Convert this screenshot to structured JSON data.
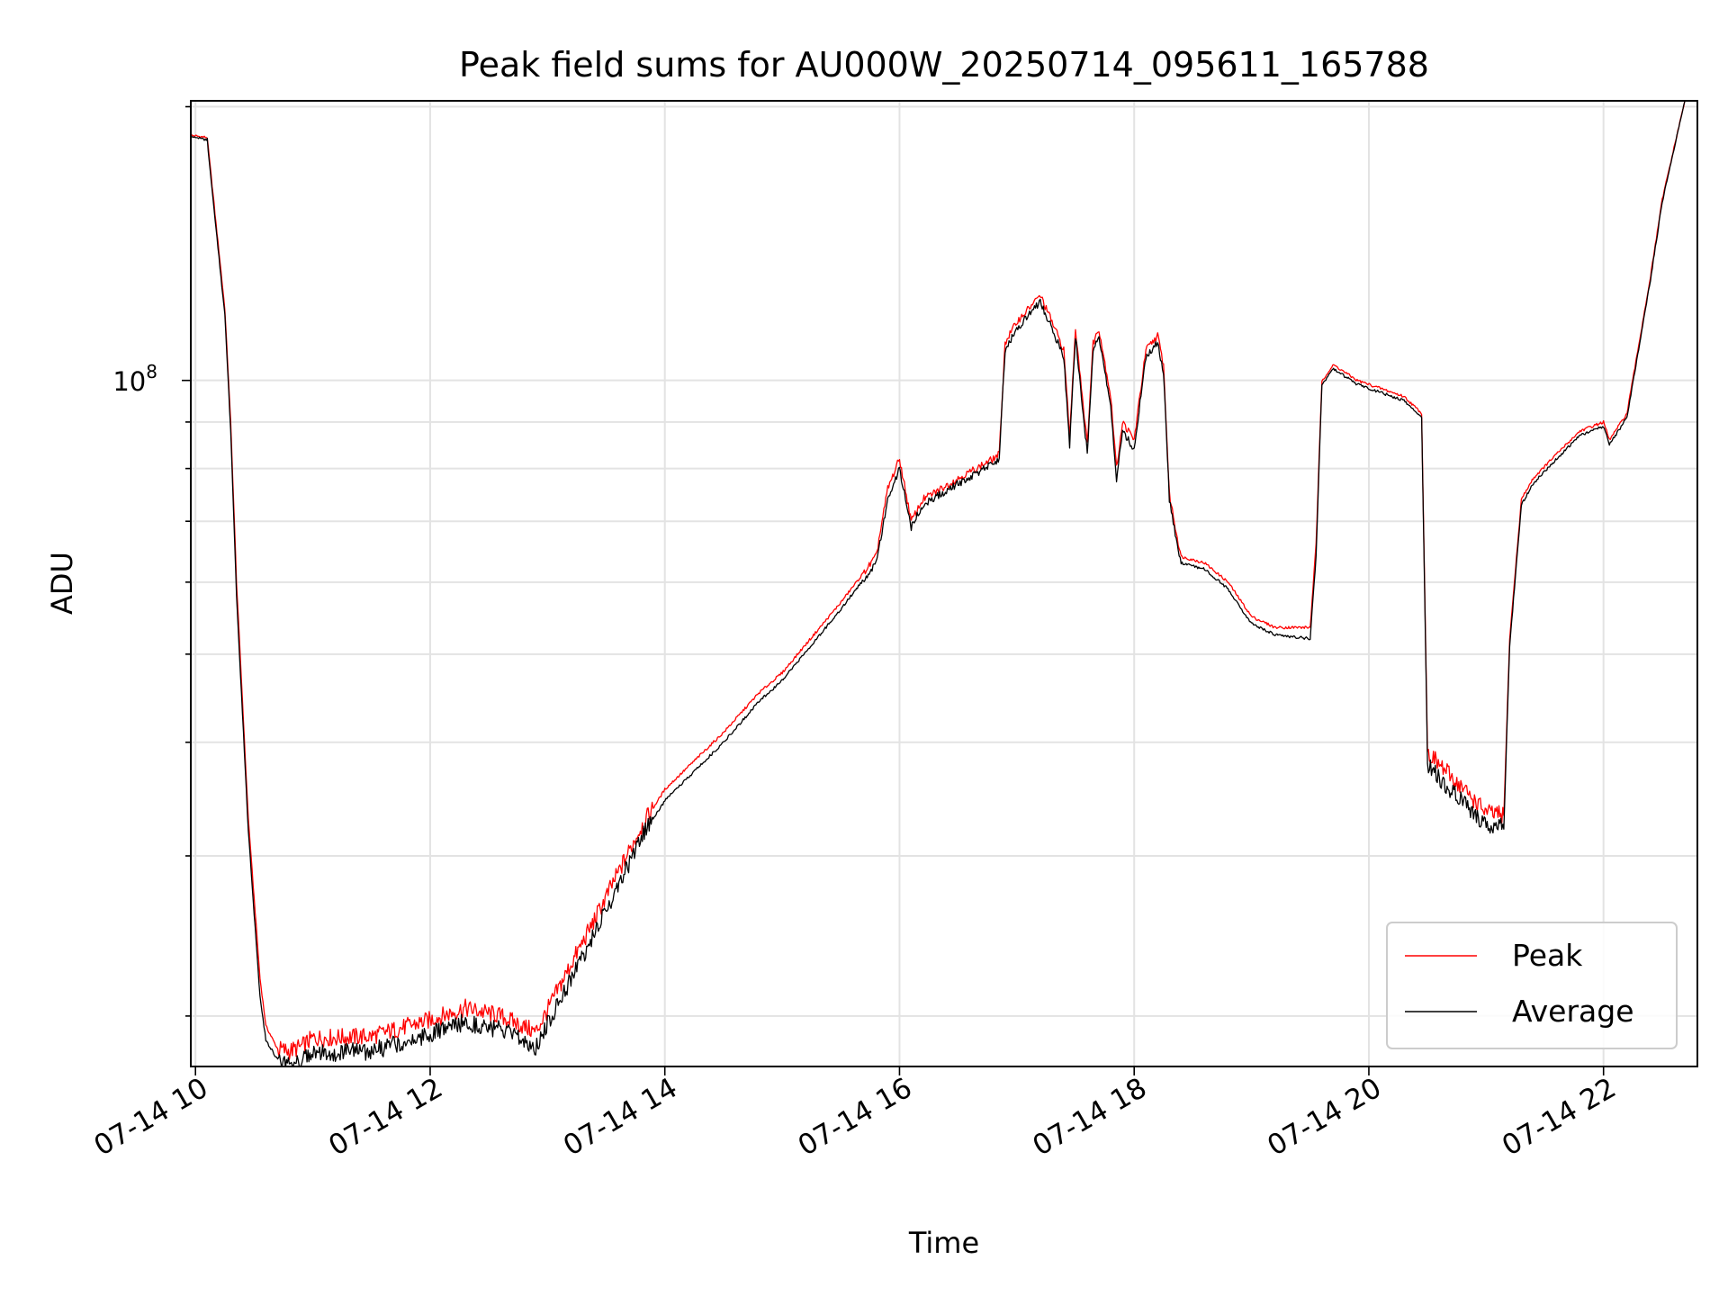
{
  "chart_data": {
    "type": "line",
    "title": "Peak field sums for AU000W_20250714_095611_165788",
    "xlabel": "Time",
    "ylabel": "ADU",
    "x_ticks": [
      "07-14 10",
      "07-14 12",
      "07-14 14",
      "07-14 16",
      "07-14 18",
      "07-14 20",
      "07-14 22"
    ],
    "x_tick_hours": [
      10,
      12,
      14,
      16,
      18,
      20,
      22
    ],
    "xlim_hours": [
      9.96,
      22.8
    ],
    "y_scale": "log",
    "ylim": [
      17600000,
      203000000
    ],
    "y_tick_label": "10^8",
    "y_major_tick": 100000000,
    "grid": true,
    "legend_position": "lower-right",
    "series": [
      {
        "name": "Peak",
        "color": "#ff0000",
        "x_hours": [
          9.96,
          10.1,
          10.15,
          10.25,
          10.3,
          10.35,
          10.45,
          10.55,
          10.6,
          10.7,
          10.8,
          10.9,
          11.0,
          11.5,
          12.0,
          12.3,
          12.6,
          12.9,
          13.0,
          13.2,
          13.4,
          13.6,
          13.8,
          14.0,
          14.5,
          14.8,
          15.0,
          15.5,
          15.8,
          15.9,
          16.0,
          16.1,
          16.2,
          16.5,
          16.8,
          16.85,
          16.9,
          17.0,
          17.2,
          17.3,
          17.4,
          17.45,
          17.5,
          17.6,
          17.65,
          17.7,
          17.8,
          17.85,
          17.9,
          18.0,
          18.1,
          18.2,
          18.25,
          18.3,
          18.35,
          18.4,
          18.6,
          18.8,
          19.0,
          19.2,
          19.5,
          19.55,
          19.6,
          19.7,
          19.9,
          20.1,
          20.3,
          20.45,
          20.5,
          20.6,
          21.0,
          21.15,
          21.2,
          21.3,
          21.4,
          21.6,
          21.8,
          22.0,
          22.05,
          22.2,
          22.4,
          22.5,
          22.7
        ],
        "values": [
          186000000,
          185000000,
          160000000,
          120000000,
          90000000,
          60000000,
          33000000,
          22000000,
          19500000,
          18400000,
          18300000,
          18500000,
          18900000,
          19000000,
          19800000,
          20400000,
          20000000,
          19200000,
          20300000,
          22800000,
          25500000,
          28700000,
          32300000,
          35500000,
          41000000,
          45300000,
          47700000,
          57000000,
          64000000,
          76000000,
          82000000,
          70000000,
          74000000,
          78000000,
          82000000,
          83000000,
          110000000,
          116000000,
          124000000,
          116000000,
          108000000,
          87000000,
          114000000,
          85000000,
          110000000,
          114000000,
          96000000,
          80000000,
          90000000,
          86000000,
          108000000,
          112000000,
          104000000,
          75000000,
          69000000,
          64000000,
          63000000,
          60000000,
          55000000,
          53500000,
          53500000,
          66000000,
          100000000,
          104000000,
          100000000,
          98000000,
          96000000,
          92000000,
          39000000,
          37800000,
          33500000,
          33200000,
          52000000,
          74000000,
          78000000,
          83000000,
          88000000,
          90000000,
          86000000,
          92000000,
          130000000,
          158000000,
          205000000
        ]
      },
      {
        "name": "Average",
        "color": "#000000",
        "x_hours": [
          9.96,
          10.1,
          10.15,
          10.25,
          10.3,
          10.35,
          10.45,
          10.55,
          10.6,
          10.7,
          10.8,
          10.9,
          11.0,
          11.5,
          12.0,
          12.3,
          12.6,
          12.9,
          13.0,
          13.2,
          13.4,
          13.6,
          13.8,
          14.0,
          14.5,
          14.8,
          15.0,
          15.5,
          15.8,
          15.9,
          16.0,
          16.1,
          16.2,
          16.5,
          16.8,
          16.85,
          16.9,
          17.0,
          17.2,
          17.3,
          17.4,
          17.45,
          17.5,
          17.6,
          17.65,
          17.7,
          17.8,
          17.85,
          17.9,
          18.0,
          18.1,
          18.2,
          18.25,
          18.3,
          18.35,
          18.4,
          18.6,
          18.8,
          19.0,
          19.2,
          19.5,
          19.55,
          19.6,
          19.7,
          19.9,
          20.1,
          20.3,
          20.45,
          20.5,
          20.6,
          21.0,
          21.15,
          21.2,
          21.3,
          21.4,
          21.6,
          21.8,
          22.0,
          22.05,
          22.2,
          22.4,
          22.5,
          22.7
        ],
        "values": [
          185000000,
          184000000,
          158000000,
          118000000,
          88000000,
          58000000,
          32000000,
          21000000,
          18800000,
          17900000,
          17800000,
          17900000,
          18200000,
          18300000,
          19100000,
          19700000,
          19300000,
          18500000,
          19600000,
          22000000,
          24600000,
          27800000,
          31400000,
          34500000,
          40000000,
          44300000,
          46800000,
          56000000,
          63000000,
          74000000,
          80000000,
          69000000,
          73000000,
          77000000,
          81000000,
          82000000,
          108000000,
          114000000,
          122000000,
          114000000,
          106000000,
          85000000,
          112000000,
          83000000,
          108000000,
          112000000,
          94000000,
          78000000,
          88000000,
          84000000,
          106000000,
          110000000,
          102000000,
          74000000,
          68000000,
          63000000,
          62000000,
          59000000,
          54000000,
          52500000,
          52000000,
          64000000,
          99000000,
          103000000,
          99000000,
          97000000,
          95000000,
          91000000,
          38000000,
          36500000,
          32500000,
          32200000,
          51000000,
          73000000,
          77000000,
          82000000,
          87000000,
          89000000,
          85000000,
          91000000,
          129000000,
          157000000,
          205000000
        ]
      }
    ]
  }
}
